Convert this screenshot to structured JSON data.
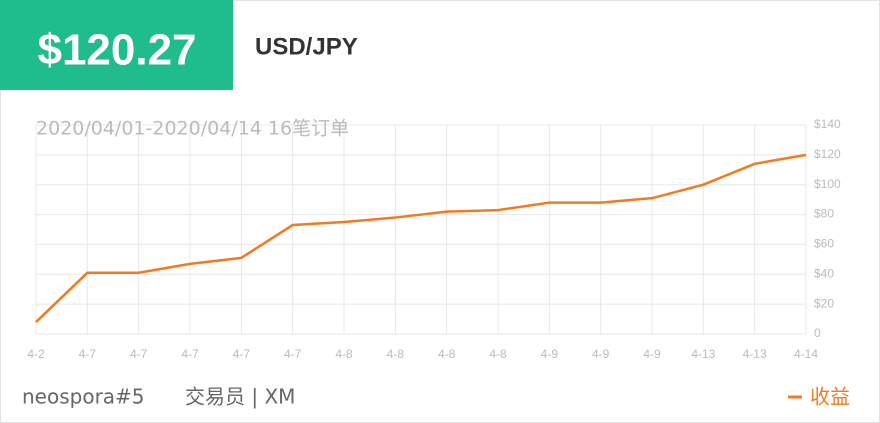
{
  "header": {
    "price": "$120.27",
    "symbol": "USD/JPY"
  },
  "footer": {
    "trader": "neospora#5",
    "role": "交易员 | XM"
  },
  "chart_data": {
    "type": "line",
    "title": "2020/04/01-2020/04/14 16笔订单",
    "categories": [
      "4-2",
      "4-7",
      "4-7",
      "4-7",
      "4-7",
      "4-7",
      "4-8",
      "4-8",
      "4-8",
      "4-8",
      "4-9",
      "4-9",
      "4-9",
      "4-13",
      "4-13",
      "4-14"
    ],
    "series": [
      {
        "name": "收益",
        "color": "#f47920",
        "values": [
          8,
          41,
          41,
          47,
          51,
          73,
          75,
          78,
          82,
          83,
          88,
          88,
          91,
          100,
          114,
          120
        ]
      }
    ],
    "ylim": [
      0,
      140
    ],
    "yticks": [
      0,
      {
        "value": 20,
        "label": "$20"
      },
      {
        "value": 40,
        "label": "$40"
      },
      {
        "value": 60,
        "label": "$60"
      },
      {
        "value": 80,
        "label": "$80"
      },
      {
        "value": 100,
        "label": "$100"
      },
      {
        "value": 120,
        "label": "$120"
      },
      {
        "value": 140,
        "label": "$140"
      }
    ],
    "grid": true,
    "legend": "bottom-right"
  }
}
